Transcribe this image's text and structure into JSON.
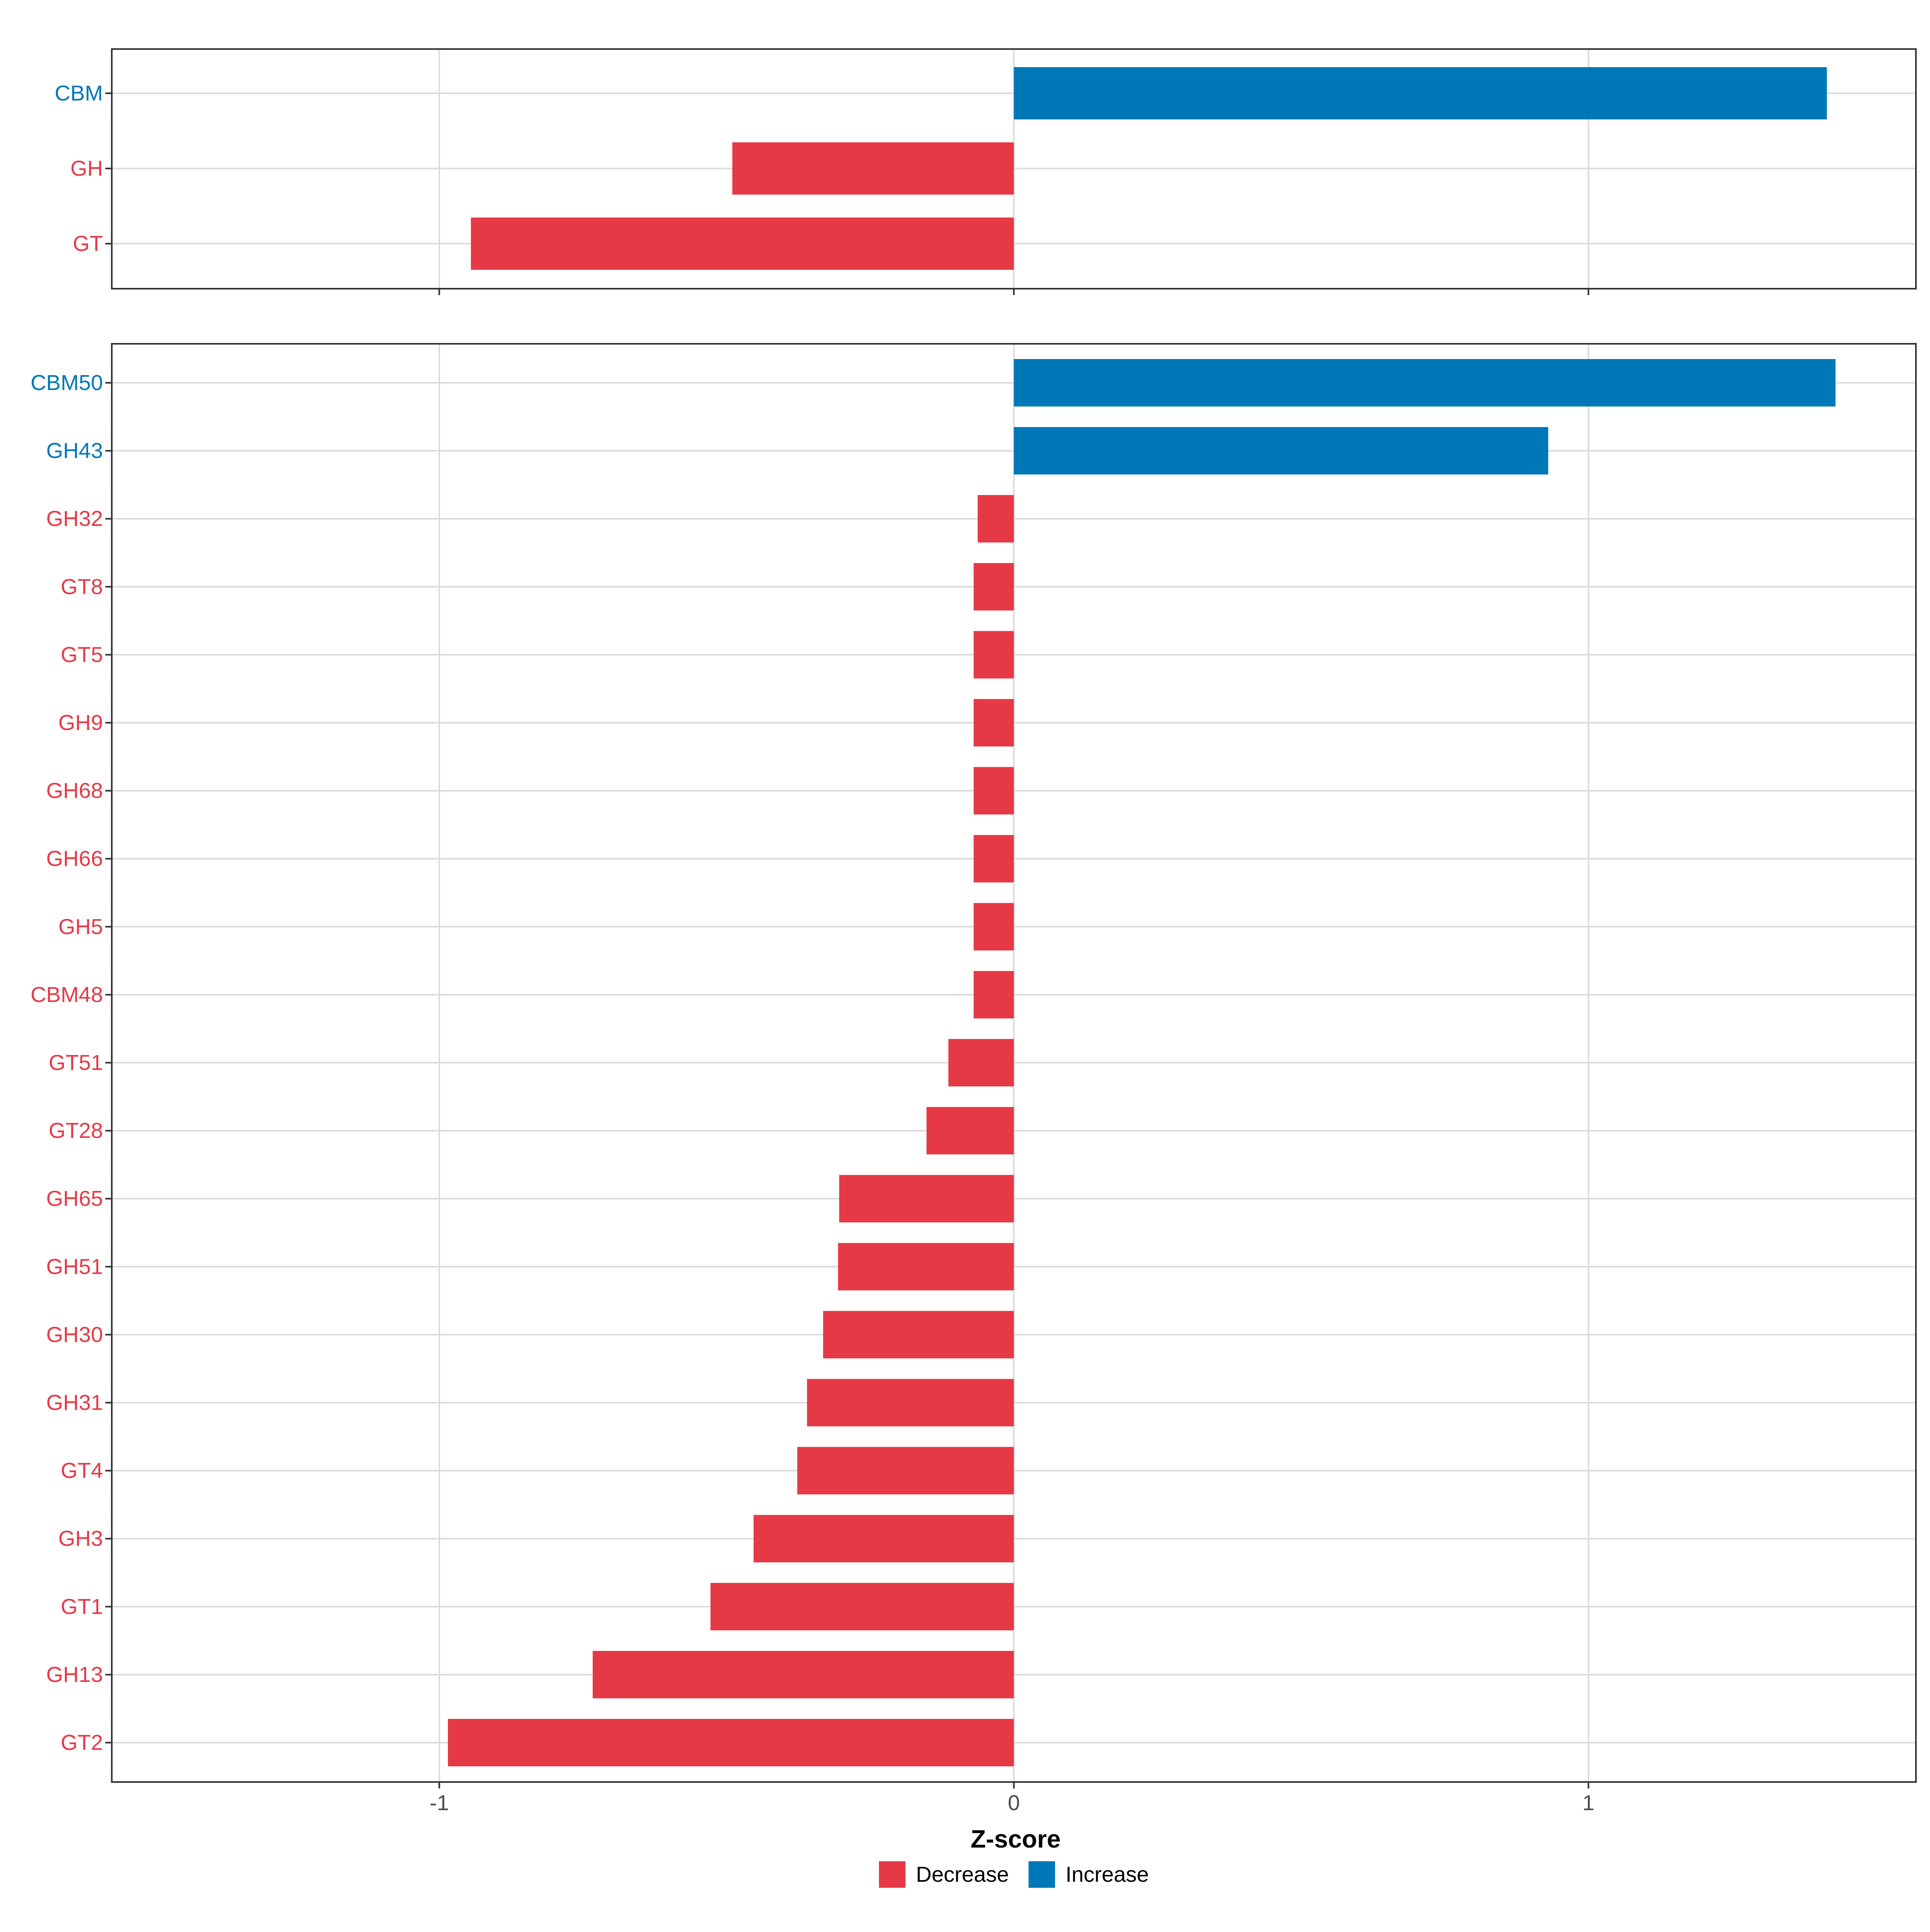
{
  "chart_data": {
    "type": "bar",
    "orientation": "horizontal",
    "xlabel": "Z-score",
    "xlim": [
      -1.57,
      1.57
    ],
    "x_ticks": [
      {
        "value": -1,
        "label": "-1"
      },
      {
        "value": 0,
        "label": "0"
      },
      {
        "value": 1,
        "label": "1"
      }
    ],
    "grid": true,
    "legend": {
      "position": "bottom",
      "items": [
        {
          "label": "Decrease",
          "color": "#E63946"
        },
        {
          "label": "Increase",
          "color": "#0077B6"
        }
      ]
    },
    "colors": {
      "Decrease": "#E63946",
      "Increase": "#0077B6"
    },
    "panels": [
      {
        "name": "top",
        "bars": [
          {
            "label": "CBM",
            "value": 1.415,
            "direction": "Increase"
          },
          {
            "label": "GH",
            "value": -0.49,
            "direction": "Decrease"
          },
          {
            "label": "GT",
            "value": -0.945,
            "direction": "Decrease"
          }
        ]
      },
      {
        "name": "bottom",
        "bars": [
          {
            "label": "CBM50",
            "value": 1.43,
            "direction": "Increase"
          },
          {
            "label": "GH43",
            "value": 0.93,
            "direction": "Increase"
          },
          {
            "label": "GH32",
            "value": -0.063,
            "direction": "Decrease"
          },
          {
            "label": "GT8",
            "value": -0.07,
            "direction": "Decrease"
          },
          {
            "label": "GT5",
            "value": -0.07,
            "direction": "Decrease"
          },
          {
            "label": "GH9",
            "value": -0.07,
            "direction": "Decrease"
          },
          {
            "label": "GH68",
            "value": -0.07,
            "direction": "Decrease"
          },
          {
            "label": "GH66",
            "value": -0.07,
            "direction": "Decrease"
          },
          {
            "label": "GH5",
            "value": -0.07,
            "direction": "Decrease"
          },
          {
            "label": "CBM48",
            "value": -0.07,
            "direction": "Decrease"
          },
          {
            "label": "GT51",
            "value": -0.114,
            "direction": "Decrease"
          },
          {
            "label": "GT28",
            "value": -0.152,
            "direction": "Decrease"
          },
          {
            "label": "GH65",
            "value": -0.304,
            "direction": "Decrease"
          },
          {
            "label": "GH51",
            "value": -0.306,
            "direction": "Decrease"
          },
          {
            "label": "GH30",
            "value": -0.332,
            "direction": "Decrease"
          },
          {
            "label": "GH31",
            "value": -0.36,
            "direction": "Decrease"
          },
          {
            "label": "GT4",
            "value": -0.377,
            "direction": "Decrease"
          },
          {
            "label": "GH3",
            "value": -0.453,
            "direction": "Decrease"
          },
          {
            "label": "GT1",
            "value": -0.528,
            "direction": "Decrease"
          },
          {
            "label": "GH13",
            "value": -0.733,
            "direction": "Decrease"
          },
          {
            "label": "GT2",
            "value": -0.985,
            "direction": "Decrease"
          }
        ]
      }
    ]
  }
}
